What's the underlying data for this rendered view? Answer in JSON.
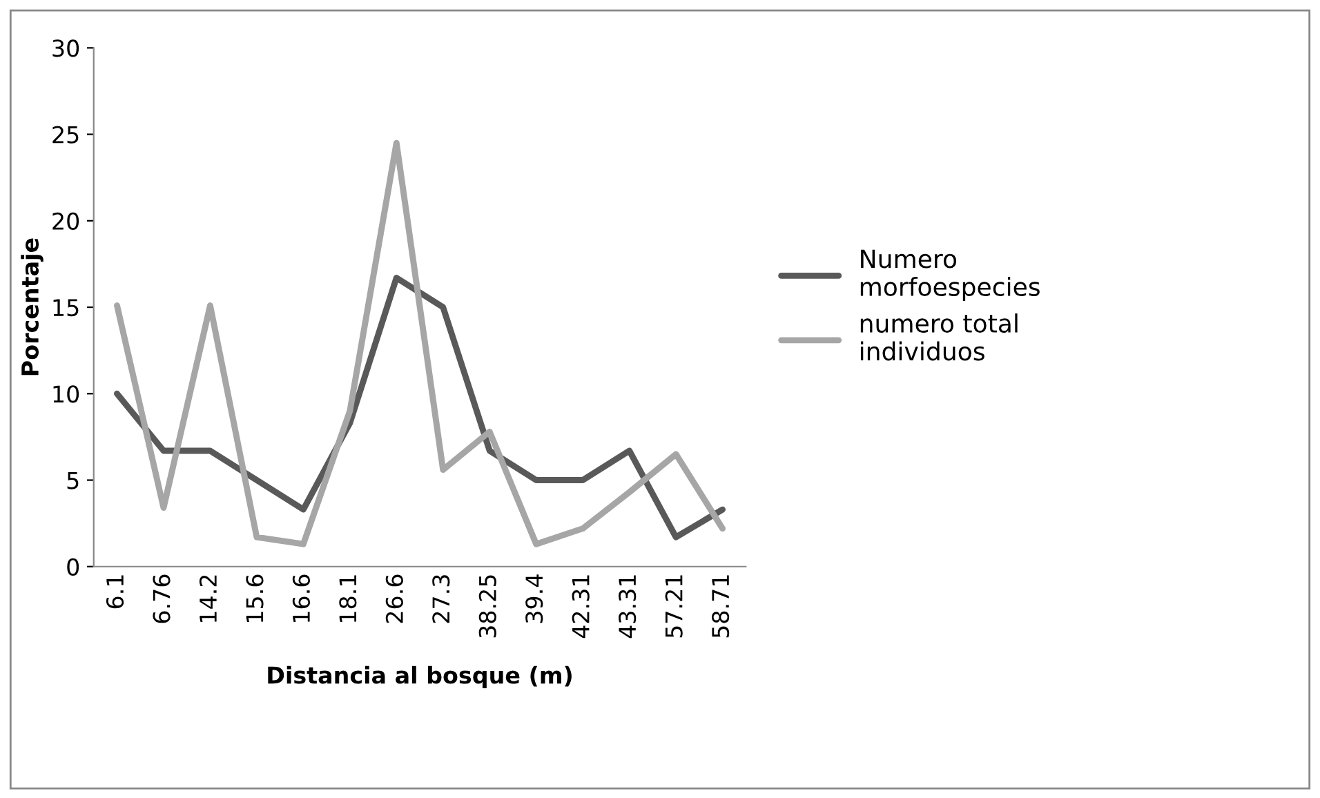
{
  "chart_data": {
    "type": "line",
    "xlabel": "Distancia al bosque (m)",
    "ylabel": "Porcentaje",
    "categories": [
      "6.1",
      "6.76",
      "14.2",
      "15.6",
      "16.6",
      "18.1",
      "26.6",
      "27.3",
      "38.25",
      "39.4",
      "42.31",
      "43.31",
      "57.21",
      "58.71"
    ],
    "series": [
      {
        "name": "Numero\nmorfoespecies",
        "color": "#595959",
        "values": [
          10,
          6.7,
          6.7,
          5,
          3.3,
          8.3,
          16.7,
          15,
          6.7,
          5,
          5,
          6.7,
          1.7,
          3.3
        ]
      },
      {
        "name": "numero total\nindividuos",
        "color": "#a6a6a6",
        "values": [
          15.1,
          3.4,
          15.1,
          1.7,
          1.3,
          9,
          24.5,
          5.6,
          7.8,
          1.3,
          2.2,
          4.3,
          6.5,
          2.2
        ]
      }
    ],
    "ylim": [
      0,
      30
    ],
    "yticks": [
      0,
      5,
      10,
      15,
      20,
      25,
      30
    ],
    "grid": false,
    "legend": "right",
    "marker": "none",
    "line_style": "solid"
  }
}
